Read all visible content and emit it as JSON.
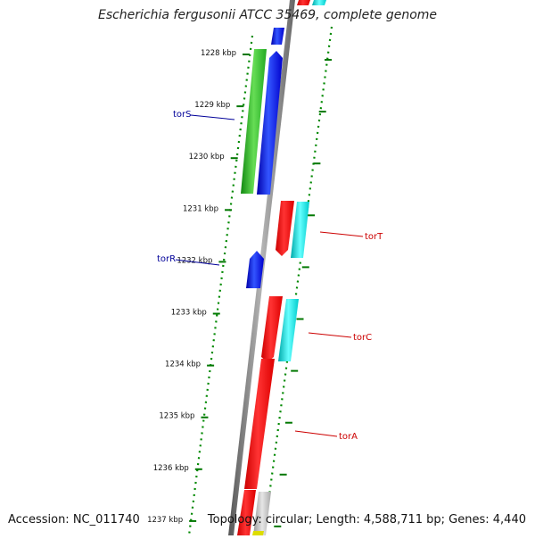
{
  "title": "Escherichia fergusonii ATCC 35469, complete genome",
  "footer": {
    "accession": "Accession: NC_011740",
    "stats": "Topology: circular; Length: 4,588,711 bp; Genes: 4,440"
  },
  "colors": {
    "forward_gene": "#0000ff",
    "forward_gene_alt": "#22bb22",
    "reverse_gene": "#ff0000",
    "reverse_gene_alt": "#00dddd",
    "reverse_gene_other": "#c0c0c0",
    "backbone": "#808080",
    "tick": "#007700",
    "label_forward": "#000099",
    "label_reverse": "#cc0000"
  },
  "axis": {
    "unit": "kbp",
    "ticks_kbp": [
      1228,
      1229,
      1230,
      1231,
      1232,
      1233,
      1234,
      1235,
      1236,
      1237
    ]
  },
  "genes": [
    {
      "name": "torS",
      "strand": "forward",
      "color": "green"
    },
    {
      "name": "torR",
      "strand": "forward",
      "color": "blue"
    },
    {
      "name": "torT",
      "strand": "reverse",
      "color": "red"
    },
    {
      "name": "torC",
      "strand": "reverse",
      "color": "red"
    },
    {
      "name": "torA",
      "strand": "reverse",
      "color": "red"
    }
  ]
}
